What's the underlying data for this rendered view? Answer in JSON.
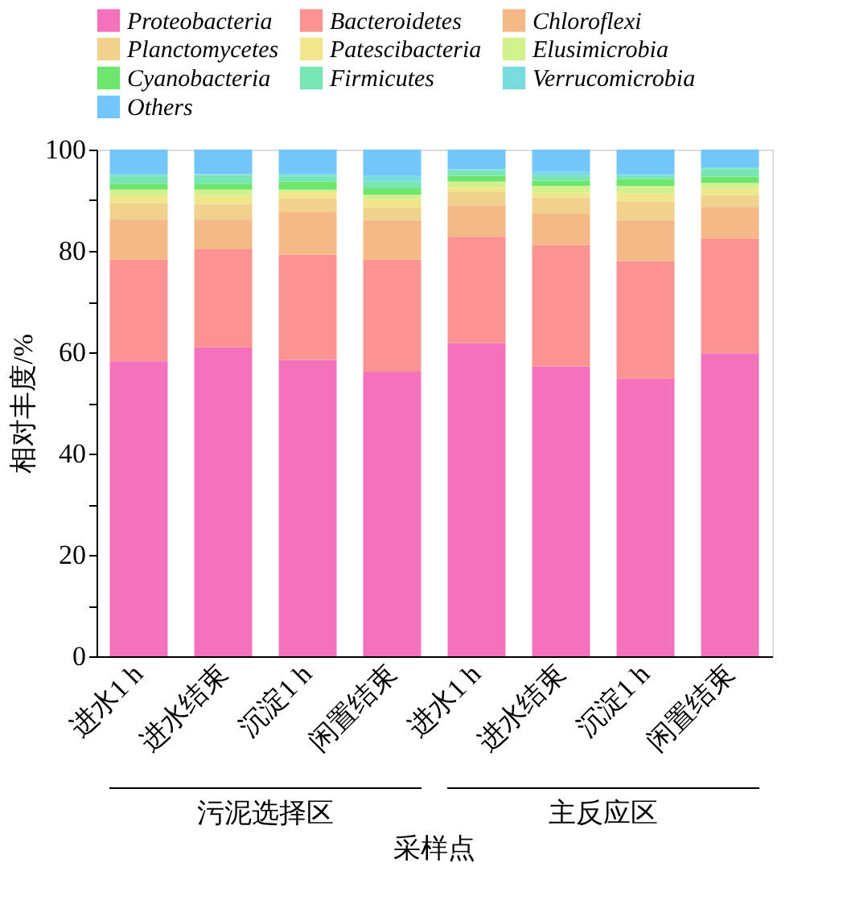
{
  "chart_data": {
    "type": "bar",
    "stacked": true,
    "xlabel": "采样点",
    "ylabel": "相对丰度/%",
    "categories": [
      "进水1 h",
      "进水结束",
      "沉淀1 h",
      "闲置结束",
      "进水1 h",
      "进水结束",
      "沉淀1 h",
      "闲置结束"
    ],
    "series": [
      {
        "name": "Proteobacteria",
        "color": "#f472bc",
        "values": [
          58.2,
          61.0,
          58.5,
          56.2,
          61.8,
          57.2,
          54.8,
          59.8
        ]
      },
      {
        "name": "Bacteroidetes",
        "color": "#fa9391",
        "values": [
          20.1,
          19.3,
          20.8,
          22.1,
          21.0,
          24.0,
          23.2,
          22.6
        ]
      },
      {
        "name": "Chloroflexi",
        "color": "#f5b987",
        "values": [
          8.0,
          6.0,
          8.3,
          7.8,
          6.2,
          6.1,
          8.1,
          6.3
        ]
      },
      {
        "name": "Planctomycetes",
        "color": "#f0d28c",
        "values": [
          3.2,
          3.0,
          2.7,
          2.5,
          2.6,
          3.2,
          3.7,
          2.3
        ]
      },
      {
        "name": "Patescibacteria",
        "color": "#f0e68c",
        "values": [
          1.3,
          1.6,
          1.3,
          1.6,
          0.9,
          1.0,
          1.5,
          1.3
        ]
      },
      {
        "name": "Elusimicrobia",
        "color": "#d2f08c",
        "values": [
          1.3,
          1.2,
          0.5,
          0.9,
          1.2,
          1.3,
          1.5,
          1.1
        ]
      },
      {
        "name": "Cyanobacteria",
        "color": "#6ee66e",
        "values": [
          1.2,
          1.2,
          1.6,
          1.3,
          1.1,
          1.1,
          1.4,
          1.3
        ]
      },
      {
        "name": "Firmicutes",
        "color": "#78e6b4",
        "values": [
          1.6,
          1.7,
          1.1,
          1.3,
          1.1,
          0.9,
          0.6,
          1.6
        ]
      },
      {
        "name": "Verrucomicrobia",
        "color": "#78dcdc",
        "values": [
          0.3,
          0.2,
          0.4,
          1.1,
          0.2,
          0.8,
          0.3,
          0.2
        ]
      },
      {
        "name": "Others",
        "color": "#73c6fa",
        "values": [
          4.8,
          4.8,
          4.8,
          5.2,
          3.9,
          4.4,
          4.9,
          3.5
        ]
      }
    ],
    "ylim": [
      0,
      100
    ],
    "yticks": [
      0,
      {
        "value": 10,
        "label": null
      },
      20,
      {
        "value": 30,
        "label": null
      },
      40,
      {
        "value": 50,
        "label": null
      },
      60,
      {
        "value": 70,
        "label": null
      },
      80,
      {
        "value": 90,
        "label": null
      },
      100
    ],
    "annotations": [
      "污泥选择区",
      "主反应区"
    ],
    "legend": "top",
    "grid": false
  }
}
